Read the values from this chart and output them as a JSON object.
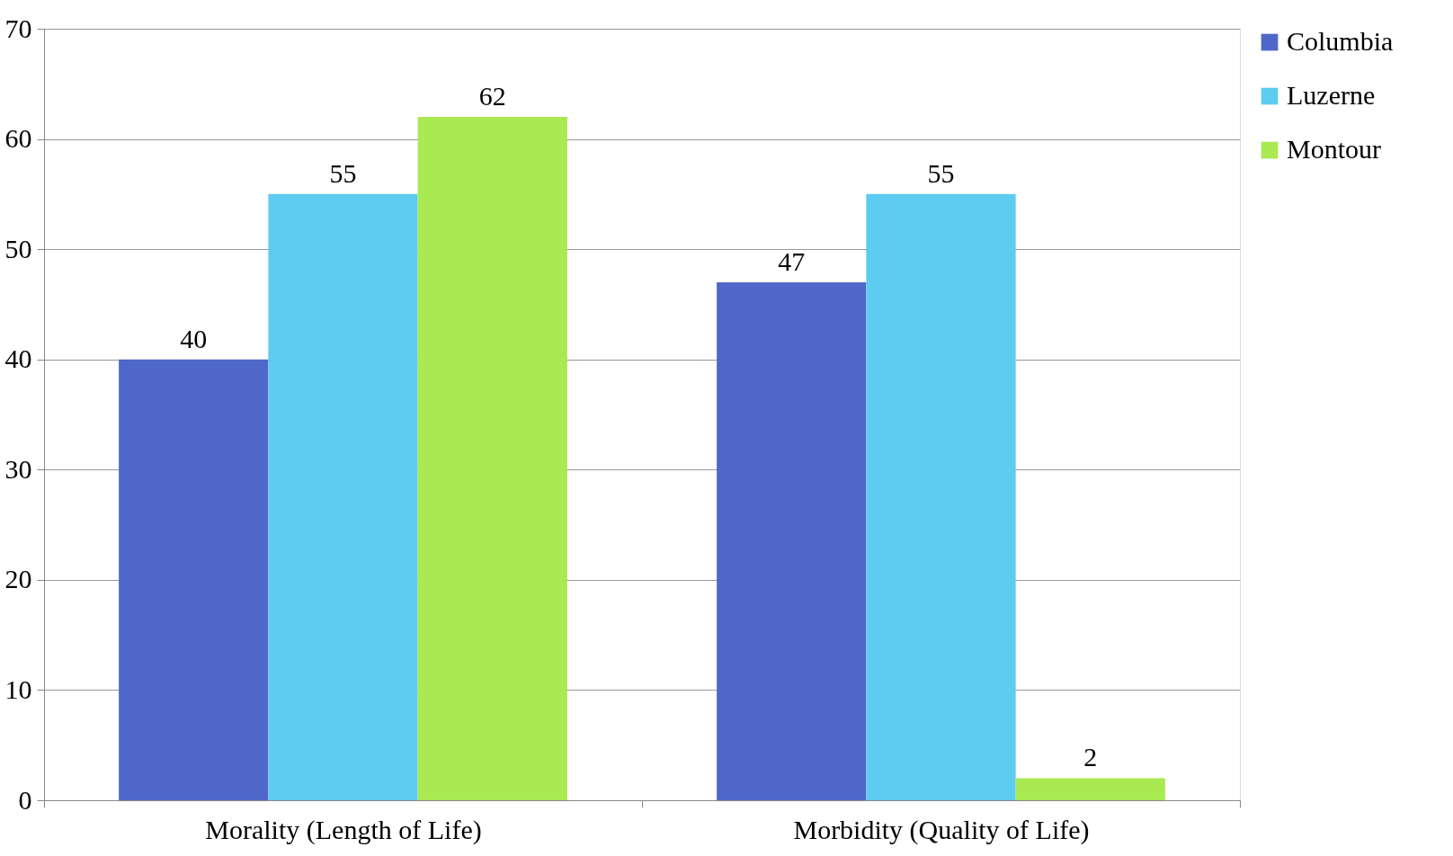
{
  "chart_data": {
    "type": "bar",
    "categories": [
      "Morality (Length of Life)",
      "Morbidity (Quality of Life)"
    ],
    "series": [
      {
        "name": "Columbia",
        "color": "#4f67c8",
        "values": [
          40,
          47
        ]
      },
      {
        "name": "Luzerne",
        "color": "#5ecbf1",
        "values": [
          55,
          55
        ]
      },
      {
        "name": "Montour",
        "color": "#a9e952",
        "values": [
          62,
          2
        ]
      }
    ],
    "ylim": [
      0,
      70
    ],
    "yticks": [
      0,
      10,
      20,
      30,
      40,
      50,
      60,
      70
    ],
    "grid": "y",
    "legend": "right",
    "data_labels": true
  }
}
